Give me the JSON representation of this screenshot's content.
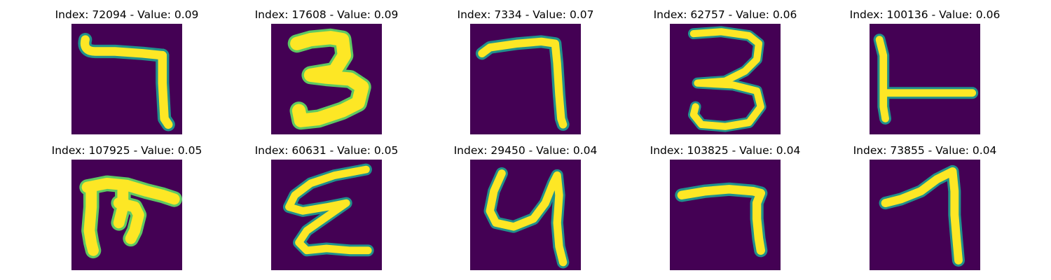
{
  "figure": {
    "colors": {
      "background": "#440154",
      "mid_dark": "#31688e",
      "mid": "#21918c",
      "mid_light": "#5ec962",
      "foreground": "#fde725"
    },
    "panels": [
      {
        "title": "Index: 72094 - Value: 0.09",
        "index": 72094,
        "value": 0.09
      },
      {
        "title": "Index: 17608 - Value: 0.09",
        "index": 17608,
        "value": 0.09
      },
      {
        "title": "Index: 7334 - Value: 0.07",
        "index": 7334,
        "value": 0.07
      },
      {
        "title": "Index: 62757 - Value: 0.06",
        "index": 62757,
        "value": 0.06
      },
      {
        "title": "Index: 100136 - Value: 0.06",
        "index": 100136,
        "value": 0.06
      },
      {
        "title": "Index: 107925 - Value: 0.05",
        "index": 107925,
        "value": 0.05
      },
      {
        "title": "Index: 60631 - Value: 0.05",
        "index": 60631,
        "value": 0.05
      },
      {
        "title": "Index: 29450 - Value: 0.04",
        "index": 29450,
        "value": 0.04
      },
      {
        "title": "Index: 103825 - Value: 0.04",
        "index": 103825,
        "value": 0.04
      },
      {
        "title": "Index: 73855 - Value: 0.04",
        "index": 73855,
        "value": 0.04
      }
    ]
  }
}
